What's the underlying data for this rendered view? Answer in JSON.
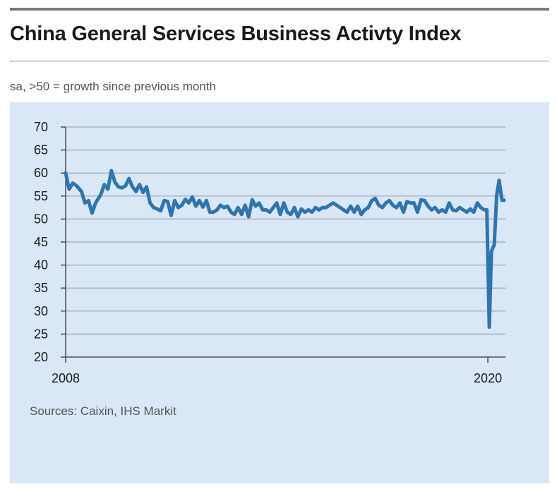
{
  "header": {
    "title": "China General Services Business Activty Index",
    "subtitle": "sa, >50 = growth since previous month"
  },
  "footer": {
    "source": "Sources: Caixin, IHS Markit"
  },
  "colors": {
    "line": "#2e75b0",
    "panel": "#d9e7f6",
    "grid": "#a9b4c3",
    "axis": "#4d4d4d"
  },
  "chart_data": {
    "type": "line",
    "title": "China General Services Business Activty Index",
    "subtitle": "sa, >50 = growth since previous month",
    "xlabel": "",
    "ylabel": "",
    "ylim": [
      20,
      70
    ],
    "yticks": [
      20,
      25,
      30,
      35,
      40,
      45,
      50,
      55,
      60,
      65,
      70
    ],
    "xticks": [
      {
        "x": 2008.0,
        "label": "2008"
      },
      {
        "x": 2020.0,
        "label": "2020"
      }
    ],
    "xlim": [
      2008.0,
      2020.5
    ],
    "grid": "horizontal",
    "legend": "none",
    "series": [
      {
        "x": [
          2008.0,
          2008.1,
          2008.2,
          2008.3,
          2008.45,
          2008.55,
          2008.65,
          2008.75,
          2008.85,
          2009.0,
          2009.1,
          2009.2,
          2009.3,
          2009.4,
          2009.5,
          2009.6,
          2009.7,
          2009.8,
          2009.9,
          2010.0,
          2010.1,
          2010.2,
          2010.3,
          2010.4,
          2010.5,
          2010.6,
          2010.7,
          2010.8,
          2010.9,
          2011.0,
          2011.1,
          2011.2,
          2011.3,
          2011.4,
          2011.5,
          2011.6,
          2011.7,
          2011.8,
          2011.9,
          2012.0,
          2012.1,
          2012.2,
          2012.3,
          2012.4,
          2012.5,
          2012.6,
          2012.7,
          2012.8,
          2012.9,
          2013.0,
          2013.1,
          2013.2,
          2013.3,
          2013.4,
          2013.5,
          2013.6,
          2013.7,
          2013.8,
          2013.9,
          2014.0,
          2014.1,
          2014.2,
          2014.3,
          2014.4,
          2014.5,
          2014.6,
          2014.7,
          2014.8,
          2014.9,
          2015.0,
          2015.1,
          2015.2,
          2015.3,
          2015.4,
          2015.5,
          2015.6,
          2015.7,
          2015.8,
          2015.9,
          2016.0,
          2016.1,
          2016.2,
          2016.3,
          2016.4,
          2016.5,
          2016.6,
          2016.7,
          2016.8,
          2016.9,
          2017.0,
          2017.1,
          2017.2,
          2017.3,
          2017.4,
          2017.5,
          2017.6,
          2017.7,
          2017.8,
          2017.9,
          2018.0,
          2018.1,
          2018.2,
          2018.3,
          2018.4,
          2018.5,
          2018.6,
          2018.7,
          2018.8,
          2018.9,
          2019.0,
          2019.1,
          2019.2,
          2019.3,
          2019.4,
          2019.5,
          2019.6,
          2019.7,
          2019.8,
          2019.9,
          2019.97,
          2020.04,
          2020.1,
          2020.18,
          2020.25,
          2020.32,
          2020.4,
          2020.46
        ],
        "values": [
          60.0,
          56.5,
          57.8,
          57.3,
          56.0,
          53.5,
          54.0,
          51.3,
          53.5,
          55.3,
          57.5,
          56.5,
          60.5,
          58.0,
          57.0,
          56.8,
          57.2,
          58.8,
          57.0,
          56.0,
          57.5,
          55.8,
          57.0,
          53.5,
          52.5,
          52.2,
          51.8,
          54.0,
          53.8,
          50.8,
          54.0,
          52.5,
          53.0,
          54.3,
          53.5,
          54.8,
          52.8,
          54.0,
          52.6,
          54.0,
          51.5,
          51.5,
          52.0,
          53.0,
          52.5,
          52.8,
          51.5,
          51.0,
          52.5,
          51.0,
          53.0,
          50.5,
          54.2,
          52.8,
          53.5,
          52.0,
          52.0,
          51.5,
          52.5,
          53.5,
          51.0,
          53.5,
          51.5,
          51.0,
          52.5,
          50.5,
          52.2,
          51.5,
          52.0,
          51.5,
          52.5,
          52.0,
          52.5,
          52.5,
          53.0,
          53.5,
          53.0,
          52.5,
          52.0,
          51.5,
          52.8,
          51.5,
          52.8,
          51.0,
          52.0,
          52.5,
          54.0,
          54.5,
          53.0,
          52.5,
          53.5,
          54.0,
          53.0,
          52.5,
          53.5,
          51.5,
          53.8,
          53.5,
          53.5,
          51.5,
          54.2,
          54.0,
          52.8,
          52.0,
          52.5,
          51.5,
          52.0,
          51.5,
          53.5,
          52.0,
          51.8,
          52.5,
          52.0,
          51.5,
          52.2,
          51.5,
          53.5,
          52.5,
          52.0,
          52.0,
          26.5,
          43.0,
          44.4,
          55.0,
          58.4,
          54.1,
          54.1
        ],
        "color": "#2e75b0"
      }
    ]
  }
}
